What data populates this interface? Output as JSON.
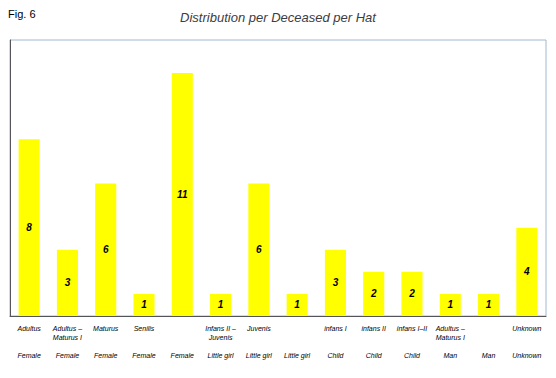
{
  "chart_data": {
    "type": "bar",
    "title": "Distribution per Deceased per Hat",
    "annotations": [
      "Fig. 6"
    ],
    "categories": [
      "Adultus\nFemale",
      "Adultus –\nMaturus I\nFemale",
      "Maturus\nFemale",
      "Senilis\nFemale",
      "Female",
      "Infans II –\nJuvenis\nLittle girl",
      "Juvenis\nLittle girl",
      "Little girl",
      "infans I\nChild",
      "infans II\nChild",
      "infans I–II\nChild",
      "Adultus –\nMaturus I\nMan",
      "Man",
      "Unknown\nUnknown"
    ],
    "values": [
      8,
      3,
      6,
      1,
      11,
      1,
      6,
      1,
      3,
      2,
      2,
      1,
      1,
      4
    ],
    "color": "#FFFF00",
    "ylim": [
      0,
      12.5
    ],
    "yticks": [],
    "grid": false,
    "data_labels": true,
    "tick_labels": "x"
  }
}
